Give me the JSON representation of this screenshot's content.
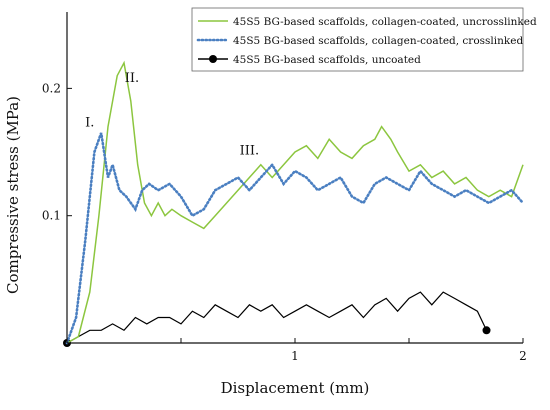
{
  "chart_data": {
    "type": "line",
    "xlabel": "Displacement (mm)",
    "ylabel": "Compressive stress (MPa)",
    "xlim": [
      0,
      2
    ],
    "ylim": [
      0,
      0.26
    ],
    "x_ticks": [
      {
        "value": 0.5,
        "label": ""
      },
      {
        "value": 1,
        "label": "1"
      },
      {
        "value": 1.5,
        "label": ""
      },
      {
        "value": 2,
        "label": "2"
      }
    ],
    "y_ticks": [
      {
        "value": 0.1,
        "label": "0.1"
      },
      {
        "value": 0.2,
        "label": "0.2"
      }
    ],
    "legend_position": "top-right",
    "annotations": [
      {
        "text": "I.",
        "x": 0.1,
        "y": 0.17
      },
      {
        "text": "II.",
        "x": 0.285,
        "y": 0.205
      },
      {
        "text": "III.",
        "x": 0.8,
        "y": 0.148
      }
    ],
    "series": [
      {
        "name": "45S5 BG-based scaffolds, collagen-coated, uncrosslinked",
        "color": "#8cc63f",
        "style": "solid",
        "points": [
          [
            0,
            0
          ],
          [
            0.05,
            0.005
          ],
          [
            0.1,
            0.04
          ],
          [
            0.14,
            0.1
          ],
          [
            0.18,
            0.17
          ],
          [
            0.22,
            0.21
          ],
          [
            0.25,
            0.22
          ],
          [
            0.28,
            0.19
          ],
          [
            0.31,
            0.14
          ],
          [
            0.34,
            0.11
          ],
          [
            0.37,
            0.1
          ],
          [
            0.4,
            0.11
          ],
          [
            0.43,
            0.1
          ],
          [
            0.46,
            0.105
          ],
          [
            0.5,
            0.1
          ],
          [
            0.55,
            0.095
          ],
          [
            0.6,
            0.09
          ],
          [
            0.65,
            0.1
          ],
          [
            0.7,
            0.11
          ],
          [
            0.75,
            0.12
          ],
          [
            0.8,
            0.13
          ],
          [
            0.85,
            0.14
          ],
          [
            0.9,
            0.13
          ],
          [
            0.95,
            0.14
          ],
          [
            1.0,
            0.15
          ],
          [
            1.05,
            0.155
          ],
          [
            1.1,
            0.145
          ],
          [
            1.15,
            0.16
          ],
          [
            1.2,
            0.15
          ],
          [
            1.25,
            0.145
          ],
          [
            1.3,
            0.155
          ],
          [
            1.35,
            0.16
          ],
          [
            1.38,
            0.17
          ],
          [
            1.42,
            0.16
          ],
          [
            1.45,
            0.15
          ],
          [
            1.5,
            0.135
          ],
          [
            1.55,
            0.14
          ],
          [
            1.6,
            0.13
          ],
          [
            1.65,
            0.135
          ],
          [
            1.7,
            0.125
          ],
          [
            1.75,
            0.13
          ],
          [
            1.8,
            0.12
          ],
          [
            1.85,
            0.115
          ],
          [
            1.9,
            0.12
          ],
          [
            1.95,
            0.115
          ],
          [
            2.0,
            0.14
          ]
        ]
      },
      {
        "name": "45S5 BG-based scaffolds, collagen-coated, crosslinked",
        "color": "#4a7fc1",
        "style": "dotted",
        "points": [
          [
            0,
            0
          ],
          [
            0.04,
            0.02
          ],
          [
            0.08,
            0.08
          ],
          [
            0.12,
            0.15
          ],
          [
            0.15,
            0.165
          ],
          [
            0.18,
            0.13
          ],
          [
            0.2,
            0.14
          ],
          [
            0.23,
            0.12
          ],
          [
            0.26,
            0.115
          ],
          [
            0.3,
            0.105
          ],
          [
            0.33,
            0.12
          ],
          [
            0.36,
            0.125
          ],
          [
            0.4,
            0.12
          ],
          [
            0.45,
            0.125
          ],
          [
            0.5,
            0.115
          ],
          [
            0.55,
            0.1
          ],
          [
            0.6,
            0.105
          ],
          [
            0.65,
            0.12
          ],
          [
            0.7,
            0.125
          ],
          [
            0.75,
            0.13
          ],
          [
            0.8,
            0.12
          ],
          [
            0.85,
            0.13
          ],
          [
            0.9,
            0.14
          ],
          [
            0.95,
            0.125
          ],
          [
            1.0,
            0.135
          ],
          [
            1.05,
            0.13
          ],
          [
            1.1,
            0.12
          ],
          [
            1.15,
            0.125
          ],
          [
            1.2,
            0.13
          ],
          [
            1.25,
            0.115
          ],
          [
            1.3,
            0.11
          ],
          [
            1.35,
            0.125
          ],
          [
            1.4,
            0.13
          ],
          [
            1.45,
            0.125
          ],
          [
            1.5,
            0.12
          ],
          [
            1.55,
            0.135
          ],
          [
            1.6,
            0.125
          ],
          [
            1.65,
            0.12
          ],
          [
            1.7,
            0.115
          ],
          [
            1.75,
            0.12
          ],
          [
            1.8,
            0.115
          ],
          [
            1.85,
            0.11
          ],
          [
            1.9,
            0.115
          ],
          [
            1.95,
            0.12
          ],
          [
            2.0,
            0.11
          ]
        ]
      },
      {
        "name": "45S5 BG-based scaffolds, uncoated",
        "color": "#000000",
        "style": "solid-marker",
        "points": [
          [
            0,
            0
          ],
          [
            0.05,
            0.005
          ],
          [
            0.1,
            0.01
          ],
          [
            0.15,
            0.01
          ],
          [
            0.2,
            0.015
          ],
          [
            0.25,
            0.01
          ],
          [
            0.3,
            0.02
          ],
          [
            0.35,
            0.015
          ],
          [
            0.4,
            0.02
          ],
          [
            0.45,
            0.02
          ],
          [
            0.5,
            0.015
          ],
          [
            0.55,
            0.025
          ],
          [
            0.6,
            0.02
          ],
          [
            0.65,
            0.03
          ],
          [
            0.7,
            0.025
          ],
          [
            0.75,
            0.02
          ],
          [
            0.8,
            0.03
          ],
          [
            0.85,
            0.025
          ],
          [
            0.9,
            0.03
          ],
          [
            0.95,
            0.02
          ],
          [
            1.0,
            0.025
          ],
          [
            1.05,
            0.03
          ],
          [
            1.1,
            0.025
          ],
          [
            1.15,
            0.02
          ],
          [
            1.2,
            0.025
          ],
          [
            1.25,
            0.03
          ],
          [
            1.3,
            0.02
          ],
          [
            1.35,
            0.03
          ],
          [
            1.4,
            0.035
          ],
          [
            1.45,
            0.025
          ],
          [
            1.5,
            0.035
          ],
          [
            1.55,
            0.04
          ],
          [
            1.6,
            0.03
          ],
          [
            1.65,
            0.04
          ],
          [
            1.7,
            0.035
          ],
          [
            1.75,
            0.03
          ],
          [
            1.8,
            0.025
          ],
          [
            1.84,
            0.01
          ]
        ]
      }
    ]
  }
}
